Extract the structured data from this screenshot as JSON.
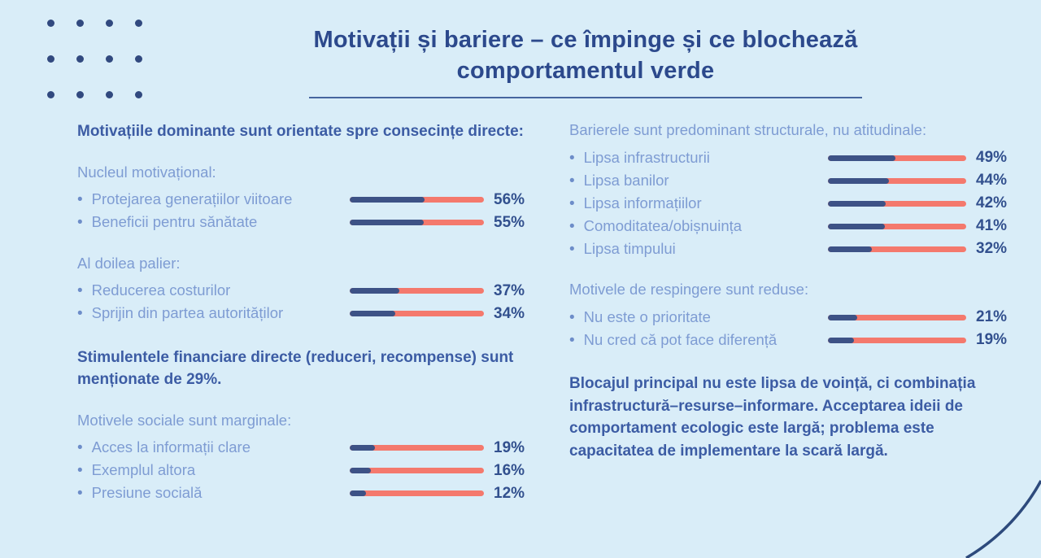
{
  "title": {
    "text": "Motivații și bariere – ce împinge și ce blochează comportamentul verde"
  },
  "colors": {
    "background": "#d9edf8",
    "title_text": "#2c498c",
    "bold_text": "#3c5ca4",
    "light_text": "#7e9cd3",
    "bar_filled": "#3d5286",
    "bar_remainder": "#f4796d",
    "percent_text": "#32508e"
  },
  "left": {
    "intro": "Motivațiile dominante sunt orientate spre consecințe directe:",
    "note": "Stimulentele financiare directe (reduceri, recompense) sunt menționate de 29%."
  },
  "right": {
    "intro": "Barierele sunt predominant structurale, nu atitudinale:",
    "note": "Blocajul principal nu este lipsa de voință, ci combinația infrastructură–resurse–informare. Acceptarea ideii de comportament ecologic este largă; problema este capacitatea de implementare la scară largă."
  },
  "chart_data": [
    {
      "type": "bar",
      "title": "Nucleul motivațional:",
      "categories": [
        "Protejarea generațiilor viitoare",
        "Beneficii pentru sănătate"
      ],
      "values": [
        56,
        55
      ],
      "unit": "%",
      "xlim": [
        0,
        100
      ],
      "legend": "none",
      "note": "filled navy segment = value, salmon segment = remainder"
    },
    {
      "type": "bar",
      "title": "Al doilea palier:",
      "categories": [
        "Reducerea costurilor",
        "Sprijin din partea autorităților"
      ],
      "values": [
        37,
        34
      ],
      "unit": "%",
      "xlim": [
        0,
        100
      ]
    },
    {
      "type": "bar",
      "title": "Motivele sociale sunt marginale:",
      "categories": [
        "Acces la informații clare",
        "Exemplul altora",
        "Presiune socială"
      ],
      "values": [
        19,
        16,
        12
      ],
      "unit": "%",
      "xlim": [
        0,
        100
      ]
    },
    {
      "type": "bar",
      "title": "Barierele sunt predominant structurale, nu atitudinale:",
      "categories": [
        "Lipsa infrastructurii",
        "Lipsa banilor",
        "Lipsa informațiilor",
        "Comoditatea/obișnuința",
        "Lipsa timpului"
      ],
      "values": [
        49,
        44,
        42,
        41,
        32
      ],
      "unit": "%",
      "xlim": [
        0,
        100
      ]
    },
    {
      "type": "bar",
      "title": "Motivele de respingere sunt reduse:",
      "categories": [
        "Nu este o prioritate",
        "Nu cred că pot face diferență"
      ],
      "values": [
        21,
        19
      ],
      "unit": "%",
      "xlim": [
        0,
        100
      ]
    }
  ]
}
